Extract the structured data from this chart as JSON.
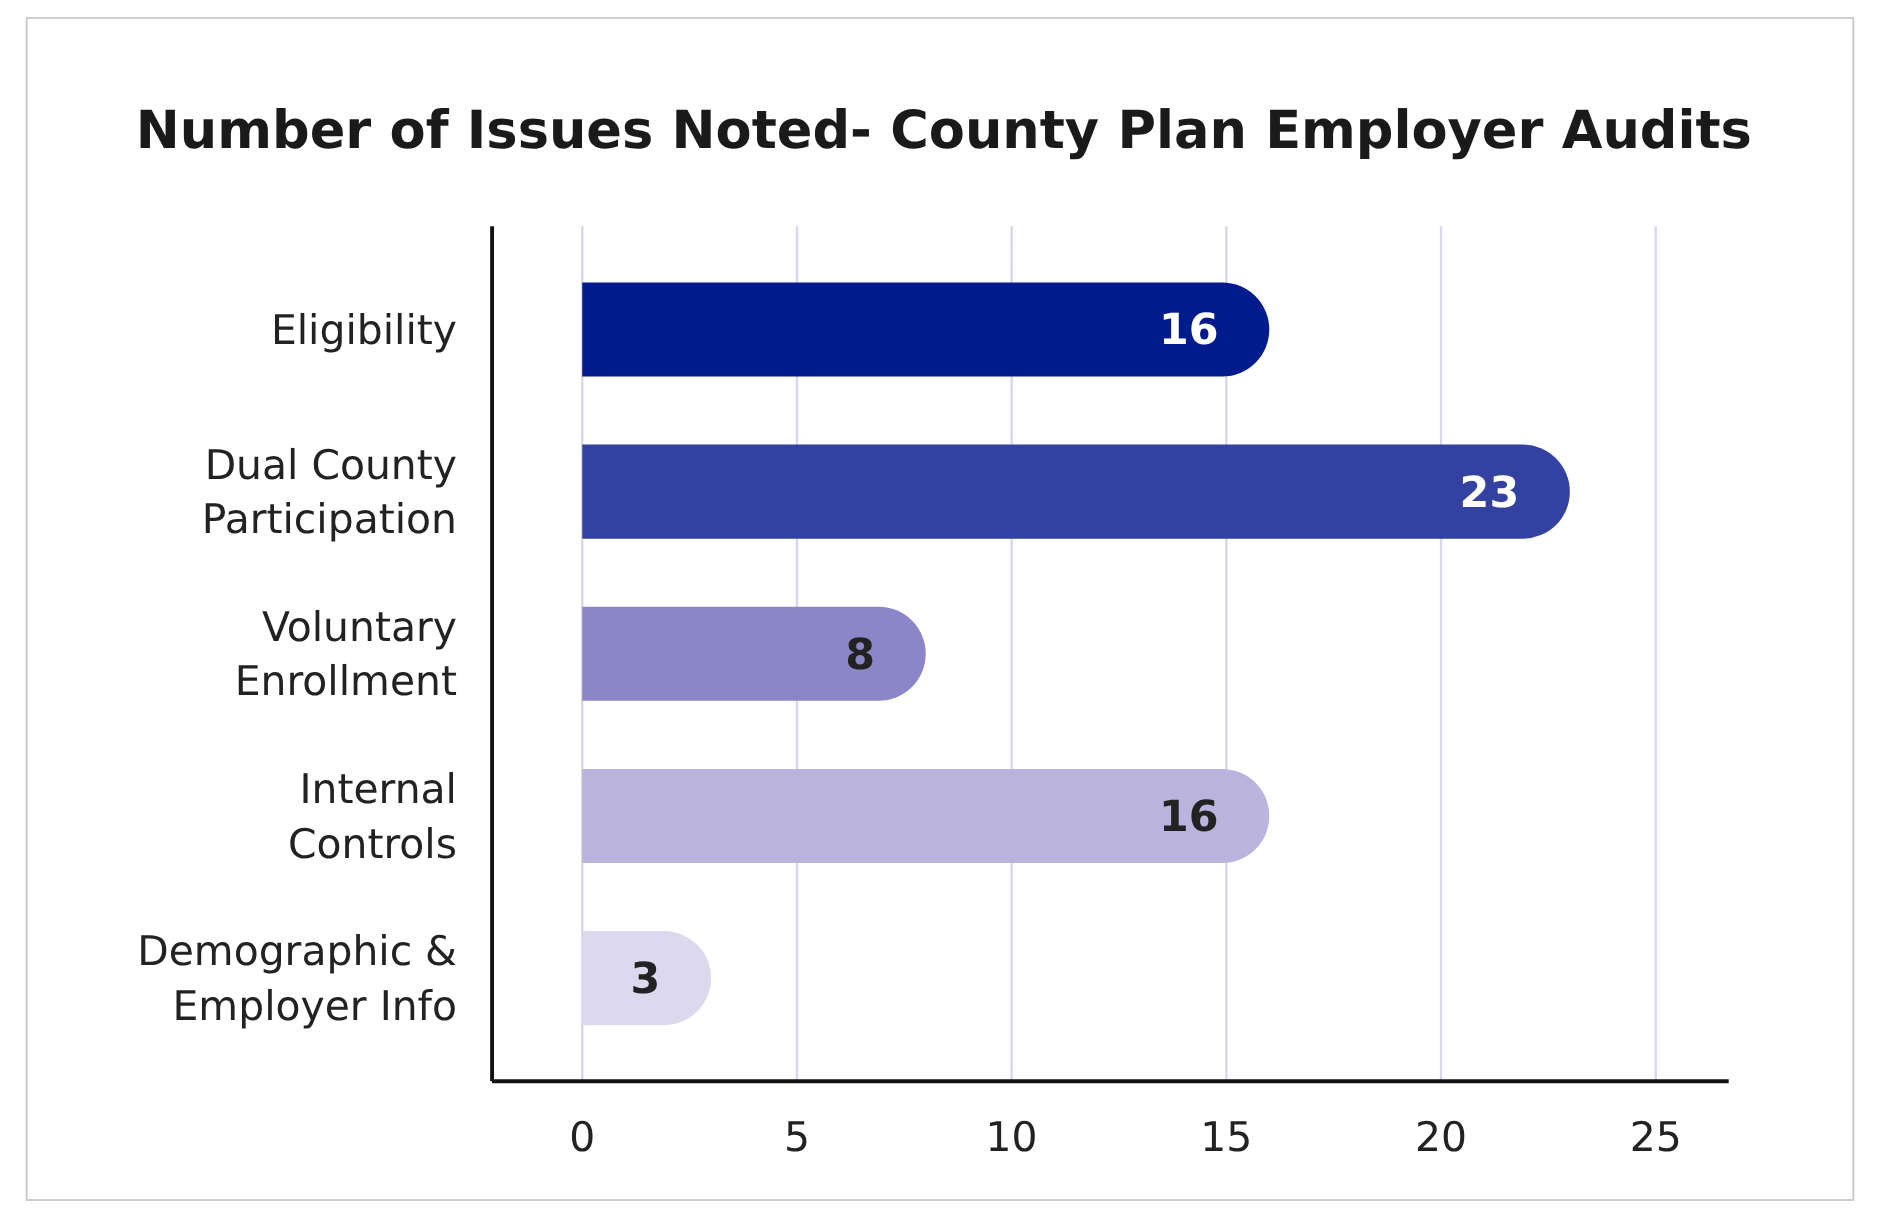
{
  "chart_data": {
    "type": "bar",
    "orientation": "horizontal",
    "title": "Number of Issues Noted- County Plan Employer Audits",
    "categories": [
      "Eligibility",
      "Dual County Participation",
      "Voluntary Enrollment",
      "Internal Controls",
      "Demographic & Employer Info"
    ],
    "values": [
      16,
      23,
      8,
      16,
      3
    ],
    "colors": [
      "#001b8b",
      "#3341a0",
      "#8a86c8",
      "#bab3de",
      "#dcd8ee"
    ],
    "xlim": [
      -2.1,
      26.7
    ],
    "xticks": [
      0,
      5,
      10,
      15,
      20,
      25
    ],
    "grid": "x",
    "data_labels": true
  }
}
